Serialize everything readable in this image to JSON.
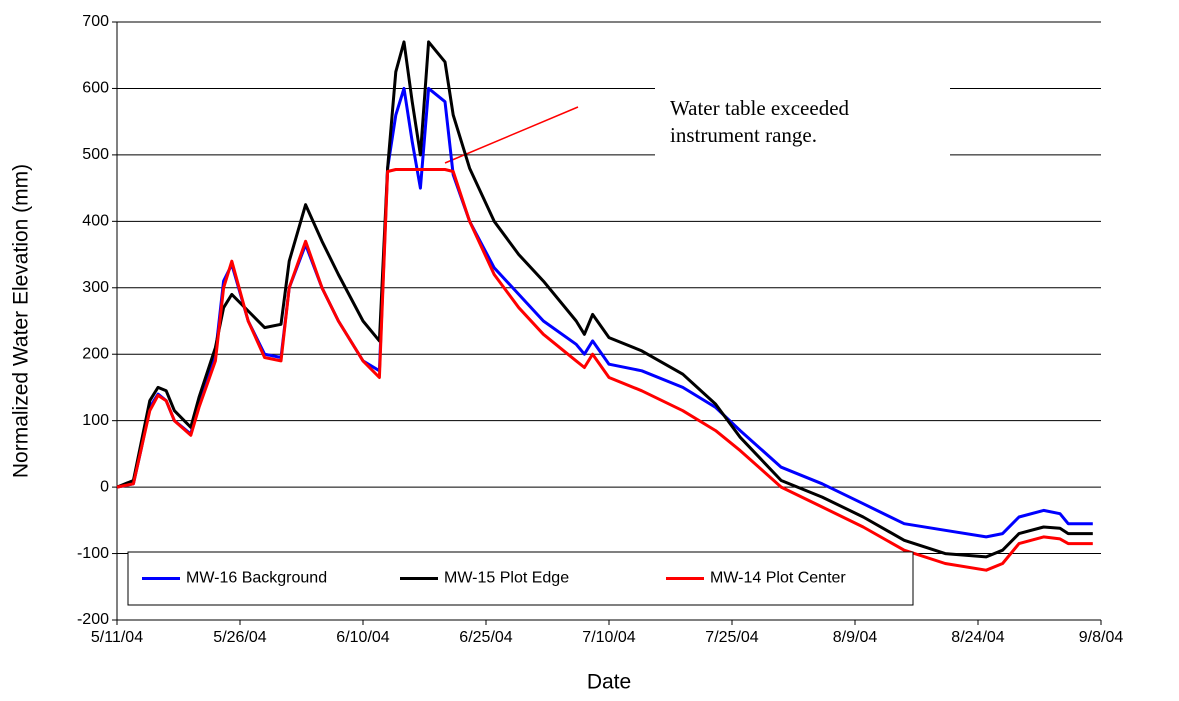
{
  "chart_data": {
    "type": "line",
    "ylabel": "Normalized Water Elevation (mm)",
    "xlabel": "Date",
    "annotation": [
      "Water table exceeded",
      "instrument range."
    ],
    "x": [
      "5/11/04",
      "5/13/04",
      "5/14/04",
      "5/15/04",
      "5/16/04",
      "5/17/04",
      "5/18/04",
      "5/20/04",
      "5/21/04",
      "5/23/04",
      "5/24/04",
      "5/25/04",
      "5/27/04",
      "5/29/04",
      "5/31/04",
      "6/1/04",
      "6/3/04",
      "6/5/04",
      "6/7/04",
      "6/10/04",
      "6/12/04",
      "6/13/04",
      "6/14/04",
      "6/15/04",
      "6/16/04",
      "6/17/04",
      "6/18/04",
      "6/20/04",
      "6/21/04",
      "6/23/04",
      "6/26/04",
      "6/29/04",
      "7/2/04",
      "7/6/04",
      "7/7/04",
      "7/8/04",
      "7/10/04",
      "7/14/04",
      "7/19/04",
      "7/23/04",
      "7/26/04",
      "7/31/04",
      "8/5/04",
      "8/10/04",
      "8/15/04",
      "8/20/04",
      "8/25/04",
      "8/27/04",
      "8/29/04",
      "9/1/04",
      "9/3/04",
      "9/4/04",
      "9/7/04"
    ],
    "series": [
      {
        "name": "MW-16 Background",
        "color": "#0000ff",
        "values": [
          0,
          5,
          60,
          120,
          140,
          130,
          100,
          80,
          130,
          200,
          310,
          335,
          250,
          200,
          195,
          300,
          365,
          300,
          250,
          190,
          175,
          480,
          560,
          600,
          520,
          450,
          600,
          580,
          470,
          400,
          330,
          290,
          250,
          215,
          200,
          220,
          185,
          175,
          150,
          120,
          85,
          30,
          5,
          -25,
          -55,
          -65,
          -75,
          -70,
          -45,
          -35,
          -40,
          -55,
          -55
        ]
      },
      {
        "name": "MW-15 Plot Edge",
        "color": "#000000",
        "values": [
          0,
          10,
          70,
          130,
          150,
          145,
          115,
          90,
          135,
          210,
          270,
          290,
          265,
          240,
          245,
          340,
          425,
          370,
          320,
          250,
          220,
          480,
          625,
          670,
          580,
          500,
          670,
          640,
          560,
          480,
          400,
          350,
          310,
          250,
          230,
          260,
          225,
          205,
          170,
          125,
          75,
          10,
          -15,
          -45,
          -80,
          -100,
          -105,
          -95,
          -70,
          -60,
          -62,
          -70,
          -70
        ]
      },
      {
        "name": "MW-14 Plot Center",
        "color": "#ff0000",
        "values": [
          0,
          5,
          60,
          115,
          138,
          130,
          100,
          78,
          120,
          190,
          300,
          340,
          250,
          195,
          190,
          300,
          370,
          300,
          250,
          190,
          165,
          475,
          478,
          478,
          478,
          478,
          478,
          478,
          475,
          400,
          320,
          270,
          230,
          190,
          180,
          200,
          165,
          145,
          115,
          85,
          55,
          0,
          -30,
          -60,
          -95,
          -115,
          -125,
          -115,
          -85,
          -75,
          -78,
          -85,
          -85
        ]
      }
    ],
    "xlim": [
      "5/11/04",
      "9/8/04"
    ],
    "xticks": [
      "5/11/04",
      "5/26/04",
      "6/10/04",
      "6/25/04",
      "7/10/04",
      "7/25/04",
      "8/9/04",
      "8/24/04",
      "9/8/04"
    ],
    "ylim": [
      -200,
      700
    ],
    "yticks": [
      -200,
      -100,
      0,
      100,
      200,
      300,
      400,
      500,
      600,
      700
    ],
    "grid": true,
    "legend": "bottom"
  }
}
